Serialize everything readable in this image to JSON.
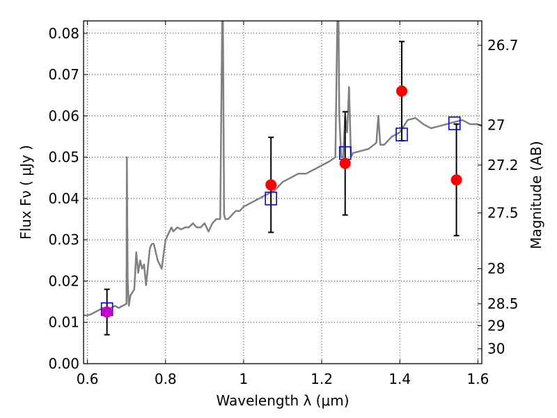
{
  "chart_data": {
    "type": "scatter",
    "title": "",
    "xlabel": "Wavelength  λ (μm)",
    "ylabel": "Flux  Fν  ( μJy )",
    "ylabel_right": "Magnitude (AB)",
    "xlim": [
      0.59,
      1.61
    ],
    "ylim": [
      0.0,
      0.083
    ],
    "grid": true,
    "x_ticks": [
      0.6,
      0.8,
      1.0,
      1.2,
      1.4,
      1.6
    ],
    "x_tick_labels": [
      "0.6",
      "0.8",
      "1",
      "1.2",
      "1.4",
      "1.6"
    ],
    "y_ticks": [
      0.0,
      0.01,
      0.02,
      0.03,
      0.04,
      0.05,
      0.06,
      0.07,
      0.08
    ],
    "y_tick_labels": [
      "0.00",
      "0.01",
      "0.02",
      "0.03",
      "0.04",
      "0.05",
      "0.06",
      "0.07",
      "0.08"
    ],
    "right_ticks": [
      {
        "label": "26.7",
        "flux": 0.0771
      },
      {
        "label": "27",
        "flux": 0.0578
      },
      {
        "label": "27.2",
        "flux": 0.0481
      },
      {
        "label": "27.5",
        "flux": 0.0365
      },
      {
        "label": "28",
        "flux": 0.023
      },
      {
        "label": "28.5",
        "flux": 0.0145
      },
      {
        "label": "29",
        "flux": 0.0092
      },
      {
        "label": "30",
        "flux": 0.0036
      }
    ],
    "series": [
      {
        "kind": "line",
        "color": "#808080",
        "x": [
          0.59,
          0.6,
          0.61,
          0.62,
          0.63,
          0.64,
          0.65,
          0.66,
          0.67,
          0.68,
          0.69,
          0.7,
          0.701,
          0.703,
          0.706,
          0.71,
          0.72,
          0.725,
          0.73,
          0.735,
          0.74,
          0.745,
          0.75,
          0.76,
          0.765,
          0.77,
          0.78,
          0.79,
          0.8,
          0.81,
          0.815,
          0.82,
          0.83,
          0.84,
          0.85,
          0.86,
          0.87,
          0.88,
          0.89,
          0.9,
          0.91,
          0.92,
          0.93,
          0.94,
          0.945,
          0.947,
          0.95,
          0.953,
          0.96,
          0.97,
          0.98,
          0.99,
          1.0,
          1.02,
          1.04,
          1.06,
          1.08,
          1.1,
          1.12,
          1.14,
          1.16,
          1.18,
          1.2,
          1.22,
          1.235,
          1.24,
          1.243,
          1.245,
          1.25,
          1.255,
          1.26,
          1.265,
          1.27,
          1.275,
          1.28,
          1.3,
          1.32,
          1.34,
          1.345,
          1.35,
          1.36,
          1.38,
          1.4,
          1.42,
          1.44,
          1.46,
          1.48,
          1.5,
          1.52,
          1.54,
          1.56,
          1.58,
          1.6,
          1.61
        ],
        "y": [
          0.0117,
          0.0117,
          0.012,
          0.0125,
          0.013,
          0.0135,
          0.013,
          0.0135,
          0.014,
          0.0135,
          0.014,
          0.0145,
          0.05,
          0.02,
          0.014,
          0.0165,
          0.018,
          0.027,
          0.022,
          0.025,
          0.023,
          0.024,
          0.019,
          0.028,
          0.029,
          0.029,
          0.025,
          0.023,
          0.03,
          0.032,
          0.033,
          0.032,
          0.033,
          0.0325,
          0.033,
          0.033,
          0.034,
          0.033,
          0.033,
          0.034,
          0.032,
          0.034,
          0.035,
          0.035,
          0.083,
          0.083,
          0.036,
          0.035,
          0.035,
          0.036,
          0.037,
          0.037,
          0.038,
          0.039,
          0.04,
          0.041,
          0.042,
          0.044,
          0.045,
          0.046,
          0.046,
          0.047,
          0.048,
          0.049,
          0.05,
          0.083,
          0.083,
          0.06,
          0.05,
          0.05,
          0.06,
          0.056,
          0.067,
          0.05,
          0.051,
          0.0515,
          0.052,
          0.0535,
          0.06,
          0.053,
          0.053,
          0.055,
          0.056,
          0.059,
          0.0595,
          0.058,
          0.057,
          0.0575,
          0.058,
          0.0585,
          0.059,
          0.058,
          0.058,
          0.0575
        ]
      },
      {
        "kind": "model_photometry",
        "marker": "open-square",
        "color": "#0000ff",
        "x": [
          0.65,
          1.07,
          1.26,
          1.405,
          1.54
        ],
        "y": [
          0.0132,
          0.04,
          0.051,
          0.0555,
          0.0582
        ]
      },
      {
        "kind": "observed",
        "marker": "filled-circle",
        "color": "#ff0000",
        "x": [
          0.65,
          1.07,
          1.26,
          1.405,
          1.545
        ],
        "y": [
          0.0125,
          0.0433,
          0.0485,
          0.066,
          0.0445
        ],
        "yerr_low": [
          0.0055,
          0.0115,
          0.0125,
          0.012,
          0.0135
        ],
        "yerr_high": [
          0.0055,
          0.0115,
          0.0125,
          0.012,
          0.0135
        ],
        "face_colors": [
          "#cc00cc",
          "#ff0000",
          "#ff0000",
          "#ff0000",
          "#ff0000"
        ]
      }
    ]
  }
}
